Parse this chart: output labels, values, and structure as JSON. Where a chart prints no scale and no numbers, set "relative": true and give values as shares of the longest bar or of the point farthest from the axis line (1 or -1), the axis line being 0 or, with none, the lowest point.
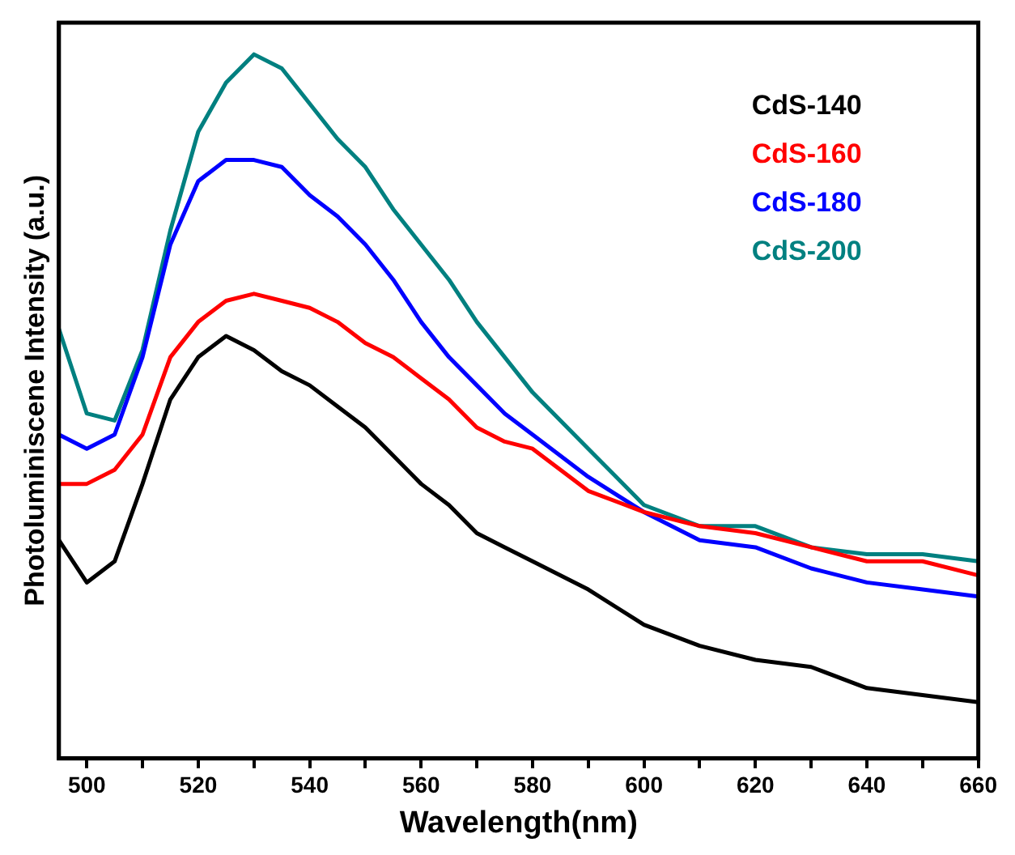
{
  "chart_data": {
    "type": "line",
    "xlabel": "Wavelength(nm)",
    "ylabel": "Photoluminiscene Intensity (a.u.)",
    "relative": true,
    "x": [
      495,
      500,
      505,
      510,
      515,
      520,
      525,
      530,
      535,
      540,
      545,
      550,
      555,
      560,
      565,
      570,
      575,
      580,
      590,
      600,
      610,
      620,
      630,
      640,
      650,
      660
    ],
    "series": [
      {
        "name": "CdS-140",
        "color": "#000000",
        "values": [
          0.31,
          0.25,
          0.28,
          0.39,
          0.51,
          0.57,
          0.6,
          0.58,
          0.55,
          0.53,
          0.5,
          0.47,
          0.43,
          0.39,
          0.36,
          0.32,
          0.3,
          0.28,
          0.24,
          0.19,
          0.16,
          0.14,
          0.13,
          0.1,
          0.09,
          0.08
        ]
      },
      {
        "name": "CdS-160",
        "color": "#ff0000",
        "values": [
          0.39,
          0.39,
          0.41,
          0.46,
          0.57,
          0.62,
          0.65,
          0.66,
          0.65,
          0.64,
          0.62,
          0.59,
          0.57,
          0.54,
          0.51,
          0.47,
          0.45,
          0.44,
          0.38,
          0.35,
          0.33,
          0.32,
          0.3,
          0.28,
          0.28,
          0.26
        ]
      },
      {
        "name": "CdS-180",
        "color": "#0000ff",
        "values": [
          0.46,
          0.44,
          0.46,
          0.57,
          0.73,
          0.82,
          0.85,
          0.85,
          0.84,
          0.8,
          0.77,
          0.73,
          0.68,
          0.62,
          0.57,
          0.53,
          0.49,
          0.46,
          0.4,
          0.35,
          0.31,
          0.3,
          0.27,
          0.25,
          0.24,
          0.23
        ]
      },
      {
        "name": "CdS-200",
        "color": "#008080",
        "values": [
          0.61,
          0.49,
          0.48,
          0.58,
          0.75,
          0.89,
          0.96,
          1.0,
          0.98,
          0.93,
          0.88,
          0.84,
          0.78,
          0.73,
          0.68,
          0.62,
          0.57,
          0.52,
          0.44,
          0.36,
          0.33,
          0.33,
          0.3,
          0.29,
          0.29,
          0.28
        ]
      }
    ],
    "xlim": [
      495,
      660
    ],
    "xticks": [
      500,
      {
        "value": 510,
        "label": null
      },
      520,
      {
        "value": 530,
        "label": null
      },
      540,
      {
        "value": 550,
        "label": null
      },
      560,
      {
        "value": 570,
        "label": null
      },
      580,
      {
        "value": 590,
        "label": null
      },
      600,
      {
        "value": 610,
        "label": null
      },
      620,
      {
        "value": 630,
        "label": null
      },
      640,
      {
        "value": 650,
        "label": null
      },
      660
    ],
    "legend": "top right",
    "marker": "none",
    "line_style": "solid"
  }
}
